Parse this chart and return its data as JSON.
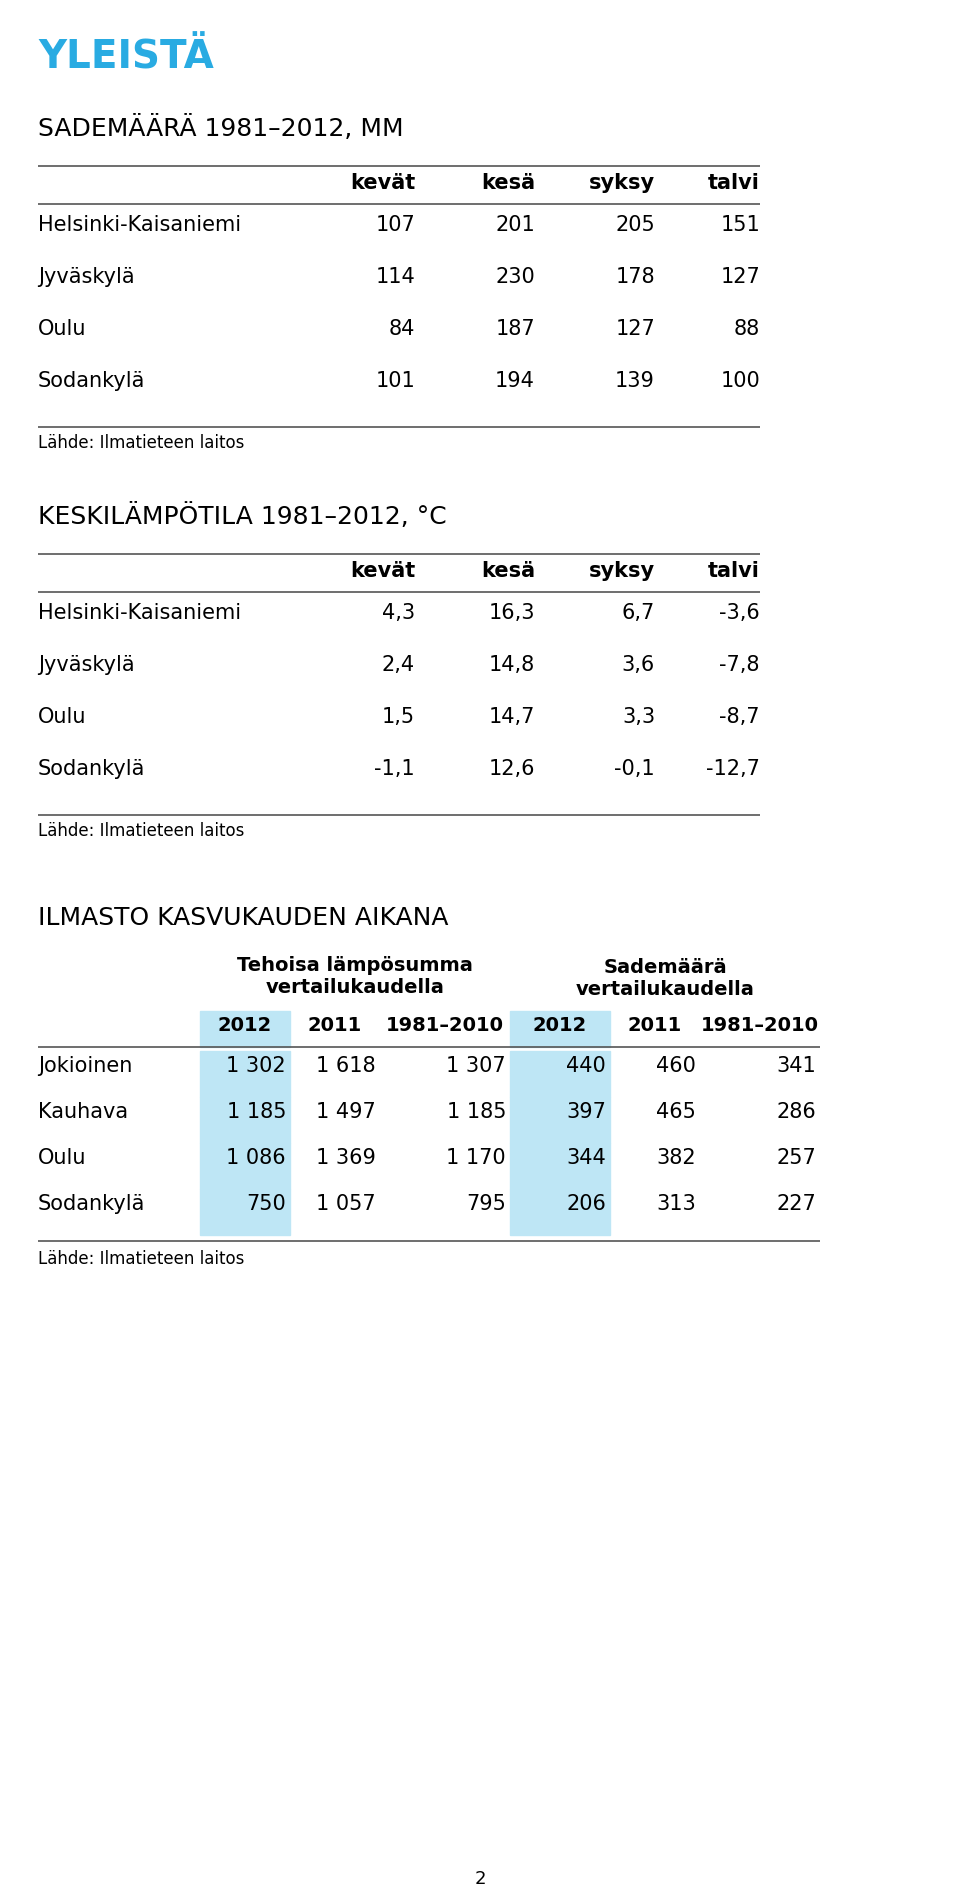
{
  "page_title": "YLEISTÄ",
  "page_title_color": "#29ABE2",
  "background_color": "#ffffff",
  "page_number": "2",
  "table1_title": "SADEMÄÄRÄ 1981–2012, MM",
  "table1_headers": [
    "",
    "kevät",
    "kesä",
    "syksy",
    "talvi"
  ],
  "table1_rows": [
    [
      "Helsinki-Kaisaniemi",
      "107",
      "201",
      "205",
      "151"
    ],
    [
      "Jyväskylä",
      "114",
      "230",
      "178",
      "127"
    ],
    [
      "Oulu",
      "84",
      "187",
      "127",
      "88"
    ],
    [
      "Sodankylä",
      "101",
      "194",
      "139",
      "100"
    ]
  ],
  "table1_source": "Lähde: Ilmatieteen laitos",
  "table2_title": "KESKILÄMPÖTILA 1981–2012, °C",
  "table2_headers": [
    "",
    "kevät",
    "kesä",
    "syksy",
    "talvi"
  ],
  "table2_rows": [
    [
      "Helsinki-Kaisaniemi",
      "4,3",
      "16,3",
      "6,7",
      "-3,6"
    ],
    [
      "Jyväskylä",
      "2,4",
      "14,8",
      "3,6",
      "-7,8"
    ],
    [
      "Oulu",
      "1,5",
      "14,7",
      "3,3",
      "-8,7"
    ],
    [
      "Sodankylä",
      "-1,1",
      "12,6",
      "-0,1",
      "-12,7"
    ]
  ],
  "table2_source": "Lähde: Ilmatieteen laitos",
  "table3_title": "ILMASTO KASVUKAUDEN AIKANA",
  "table3_col_group1": "Tehoisa lämpösumma\nvertailukaudella",
  "table3_col_group2": "Sademäärä\nvertailukaudella",
  "table3_subheaders": [
    "2012",
    "2011",
    "1981–2010",
    "2012",
    "2011",
    "1981–2010"
  ],
  "table3_highlight_color": "#BEE6F5",
  "table3_rows": [
    [
      "Jokioinen",
      "1 302",
      "1 618",
      "1 307",
      "440",
      "460",
      "341"
    ],
    [
      "Kauhava",
      "1 185",
      "1 497",
      "1 185",
      "397",
      "465",
      "286"
    ],
    [
      "Oulu",
      "1 086",
      "1 369",
      "1 170",
      "344",
      "382",
      "257"
    ],
    [
      "Sodankylä",
      "750",
      "1 057",
      "795",
      "206",
      "313",
      "227"
    ]
  ],
  "table3_source": "Lähde: Ilmatieteen laitos"
}
